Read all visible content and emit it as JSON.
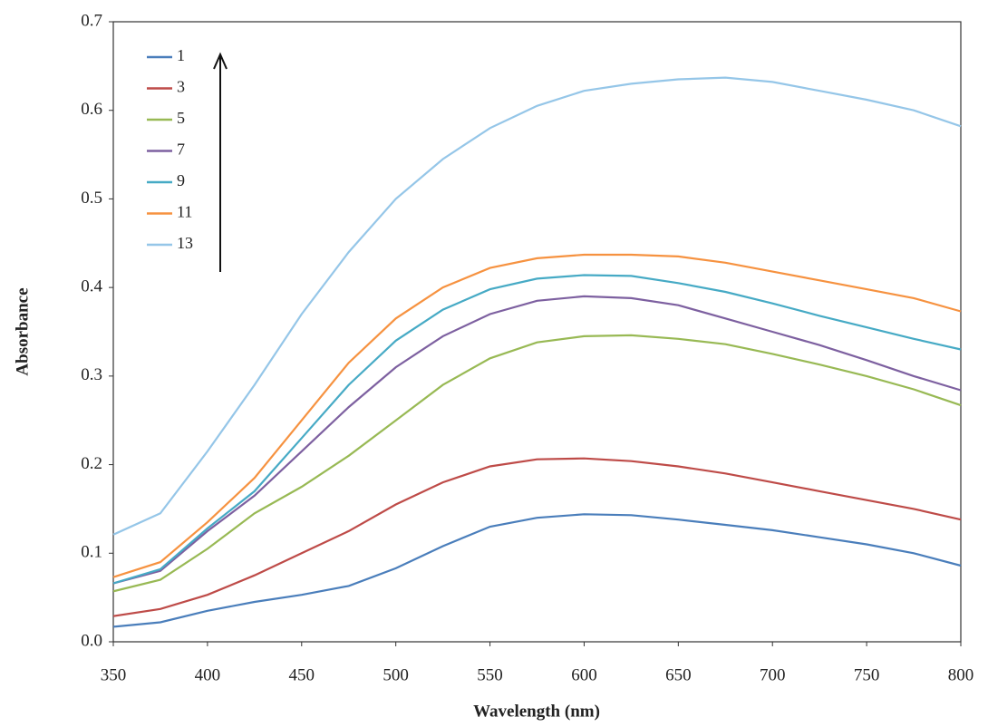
{
  "chart_data": {
    "type": "line",
    "x_label": "Wavelength (nm)",
    "y_label": "Absorbance",
    "x": [
      350,
      375,
      400,
      425,
      450,
      475,
      500,
      525,
      550,
      575,
      600,
      625,
      650,
      675,
      700,
      725,
      750,
      775,
      800
    ],
    "series": [
      {
        "name": "1",
        "color": "#4a7ebb",
        "values": [
          0.017,
          0.022,
          0.035,
          0.045,
          0.053,
          0.063,
          0.083,
          0.108,
          0.13,
          0.14,
          0.144,
          0.143,
          0.138,
          0.132,
          0.126,
          0.118,
          0.11,
          0.1,
          0.086
        ]
      },
      {
        "name": "3",
        "color": "#be4b48",
        "values": [
          0.029,
          0.037,
          0.053,
          0.075,
          0.1,
          0.125,
          0.155,
          0.18,
          0.198,
          0.206,
          0.207,
          0.204,
          0.198,
          0.19,
          0.18,
          0.17,
          0.16,
          0.15,
          0.138
        ]
      },
      {
        "name": "5",
        "color": "#98b954",
        "values": [
          0.057,
          0.07,
          0.105,
          0.145,
          0.175,
          0.21,
          0.25,
          0.29,
          0.32,
          0.338,
          0.345,
          0.346,
          0.342,
          0.336,
          0.325,
          0.313,
          0.3,
          0.285,
          0.267
        ]
      },
      {
        "name": "7",
        "color": "#7d60a0",
        "values": [
          0.066,
          0.08,
          0.125,
          0.165,
          0.215,
          0.265,
          0.31,
          0.345,
          0.37,
          0.385,
          0.39,
          0.388,
          0.38,
          0.365,
          0.35,
          0.335,
          0.318,
          0.3,
          0.284
        ]
      },
      {
        "name": "9",
        "color": "#46aac5",
        "values": [
          0.066,
          0.082,
          0.128,
          0.17,
          0.23,
          0.29,
          0.34,
          0.375,
          0.398,
          0.41,
          0.414,
          0.413,
          0.405,
          0.395,
          0.382,
          0.368,
          0.355,
          0.342,
          0.33
        ]
      },
      {
        "name": "11",
        "color": "#f69240",
        "values": [
          0.073,
          0.09,
          0.135,
          0.185,
          0.25,
          0.315,
          0.365,
          0.4,
          0.422,
          0.433,
          0.437,
          0.437,
          0.435,
          0.428,
          0.418,
          0.408,
          0.398,
          0.388,
          0.373
        ]
      },
      {
        "name": "13",
        "color": "#95c6e8",
        "values": [
          0.121,
          0.145,
          0.215,
          0.29,
          0.37,
          0.44,
          0.5,
          0.545,
          0.58,
          0.605,
          0.622,
          0.63,
          0.635,
          0.637,
          0.632,
          0.622,
          0.612,
          0.6,
          0.582
        ]
      }
    ],
    "xlim": [
      350,
      800
    ],
    "xticks": [
      350,
      400,
      450,
      500,
      550,
      600,
      650,
      700,
      750,
      800
    ],
    "ylim": [
      0,
      0.7
    ],
    "yticks": [
      {
        "value": 0,
        "label": "0.0"
      },
      0.1,
      0.2,
      0.3,
      0.4,
      0.5,
      0.6,
      0.7
    ],
    "legend": "top-left"
  }
}
